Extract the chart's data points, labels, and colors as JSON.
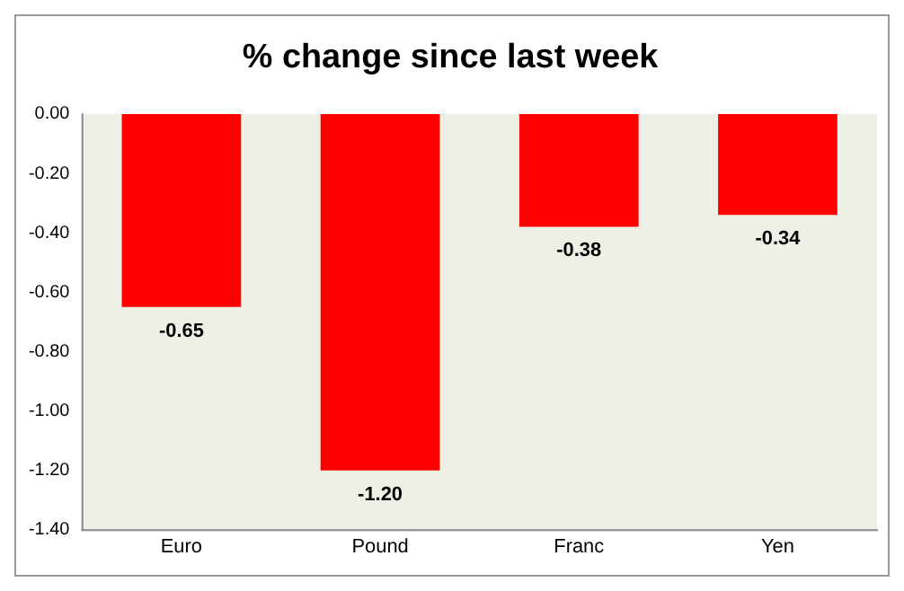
{
  "chart_data": {
    "type": "bar",
    "title": "% change since last week",
    "categories": [
      "Euro",
      "Pound",
      "Franc",
      "Yen"
    ],
    "values": [
      -0.65,
      -1.2,
      -0.38,
      -0.34
    ],
    "color": "#ff0000",
    "value_labels": [
      "-0.65",
      "-1.20",
      "-0.38",
      "-0.34"
    ],
    "ylim": [
      -1.4,
      0
    ],
    "yticks": [
      {
        "value": 0,
        "label": "0.00"
      },
      {
        "value": -0.2,
        "label": "-0.20"
      },
      {
        "value": -0.4,
        "label": "-0.40"
      },
      {
        "value": -0.6,
        "label": "-0.60"
      },
      {
        "value": -0.8,
        "label": "-0.80"
      },
      {
        "value": -1,
        "label": "-1.00"
      },
      {
        "value": -1.2,
        "label": "-1.20"
      },
      {
        "value": -1.4,
        "label": "-1.40"
      }
    ],
    "grid": false,
    "legend": false
  }
}
